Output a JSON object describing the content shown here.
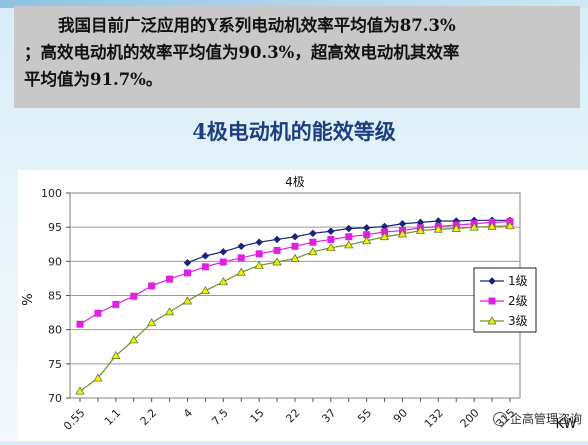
{
  "text": {
    "line1": "我国目前广泛应用的Y系列电动机效率平均值为87.3%",
    "line2": "；高效电动机的效率平均值为90.3%，超高效电动机其效率",
    "line3": "平均值为91.7%。"
  },
  "subtitle": "4极电动机的能效等级",
  "watermark": "企高管理咨询",
  "chart_data": {
    "type": "line",
    "title": "4极",
    "xlabel": "KW",
    "ylabel": "%",
    "ylim": [
      70,
      100
    ],
    "yticks": [
      70,
      75,
      80,
      85,
      90,
      95,
      100
    ],
    "xtick_labels": [
      "0.55",
      "1.1",
      "2.2",
      "4",
      "7.5",
      "15",
      "22",
      "37",
      "55",
      "90",
      "132",
      "200",
      "315"
    ],
    "n_points": 25,
    "grid": "horizontal",
    "legend_position": "right",
    "series": [
      {
        "name": "1级",
        "color": "#1a237e",
        "marker": "diamond",
        "start_index": 6,
        "values": [
          89.8,
          90.8,
          91.4,
          92.2,
          92.8,
          93.2,
          93.6,
          94.1,
          94.4,
          94.8,
          94.9,
          95.1,
          95.5,
          95.7,
          95.9,
          95.9,
          96.0,
          96.0,
          96.0
        ]
      },
      {
        "name": "2级",
        "color": "#e020e0",
        "marker": "square",
        "start_index": 0,
        "values": [
          80.8,
          82.4,
          83.7,
          84.9,
          86.4,
          87.4,
          88.3,
          89.2,
          89.9,
          90.5,
          91.1,
          91.6,
          92.2,
          92.8,
          93.2,
          93.6,
          93.9,
          94.3,
          94.5,
          94.9,
          95.1,
          95.3,
          95.5,
          95.7,
          95.8
        ]
      },
      {
        "name": "3级",
        "color": "#f0f000",
        "marker": "triangle",
        "start_index": 0,
        "values": [
          71.0,
          72.9,
          76.2,
          78.5,
          81.0,
          82.6,
          84.2,
          85.7,
          87.0,
          88.4,
          89.4,
          89.9,
          90.4,
          91.4,
          92.0,
          92.4,
          93.0,
          93.6,
          94.0,
          94.5,
          94.7,
          94.8,
          95.0,
          95.1,
          95.2
        ]
      }
    ]
  }
}
